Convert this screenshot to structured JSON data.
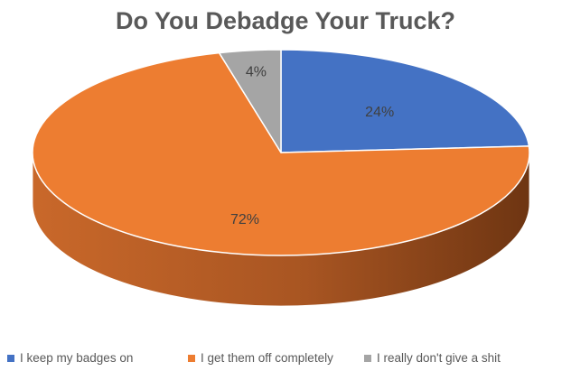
{
  "chart_data": {
    "type": "pie",
    "title": "Do You Debadge Your Truck?",
    "categories": [
      "I keep my badges on",
      "I get them off completely",
      "I really don't give a shit"
    ],
    "values": [
      24,
      72,
      4
    ],
    "data_labels": [
      "24%",
      "72%",
      "4%"
    ],
    "colors": [
      "#4472C4",
      "#ED7D31",
      "#A5A5A5"
    ],
    "legend_position": "bottom",
    "style": "3d"
  }
}
